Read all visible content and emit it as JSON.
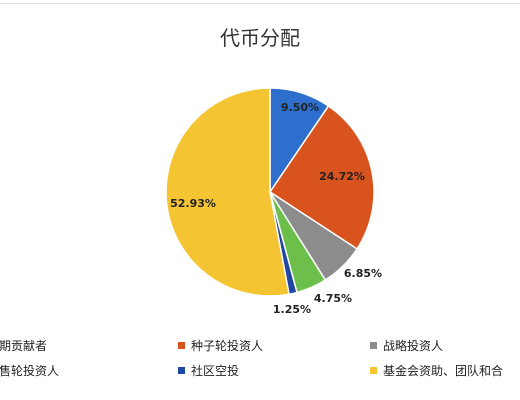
{
  "chart_data": {
    "type": "pie",
    "title": "代币分配",
    "slices": [
      {
        "label": "早期贡献者",
        "value": 9.5,
        "display": "9.50%",
        "color": "#2e6fce"
      },
      {
        "label": "种子轮投资人",
        "value": 24.72,
        "display": "24.72%",
        "color": "#d9531e"
      },
      {
        "label": "战略投资人",
        "value": 6.85,
        "display": "6.85%",
        "color": "#8c8c8c"
      },
      {
        "label": "预售轮投资人",
        "value": 4.75,
        "display": "4.75%",
        "color": "#6cbf4a"
      },
      {
        "label": "社区空投",
        "value": 1.25,
        "display": "1.25%",
        "color": "#1f47a3"
      },
      {
        "label": "基金会资助、团队和合",
        "value": 52.93,
        "display": "52.93%",
        "color": "#f4c433"
      }
    ],
    "legend_placement": "bottom"
  }
}
